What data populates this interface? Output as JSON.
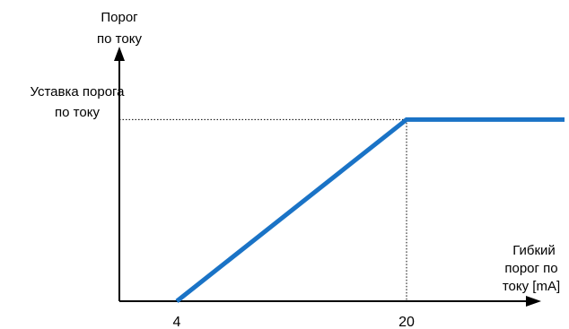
{
  "chart_data": {
    "type": "line",
    "ylabel": [
      "Порог",
      "по току"
    ],
    "xlabel": [
      "Гибкий",
      "порог по",
      "току [mA]"
    ],
    "setpoint_label": [
      "Уставка порога",
      "по току"
    ],
    "x_ticks": [
      {
        "value": 4,
        "label": "4"
      },
      {
        "value": 20,
        "label": "20"
      }
    ],
    "xlim": [
      0,
      31
    ],
    "ylim": [
      0,
      1.5
    ],
    "grid": false,
    "legend": "none",
    "reference_lines": {
      "x": 20,
      "y": 1
    },
    "series": [
      {
        "color": "#1a73c6",
        "points": [
          [
            4,
            0
          ],
          [
            20,
            1
          ],
          [
            31,
            1
          ]
        ]
      }
    ],
    "colors": {
      "line": "#1a73c6",
      "axis": "#000000",
      "guide": "#000000"
    }
  }
}
